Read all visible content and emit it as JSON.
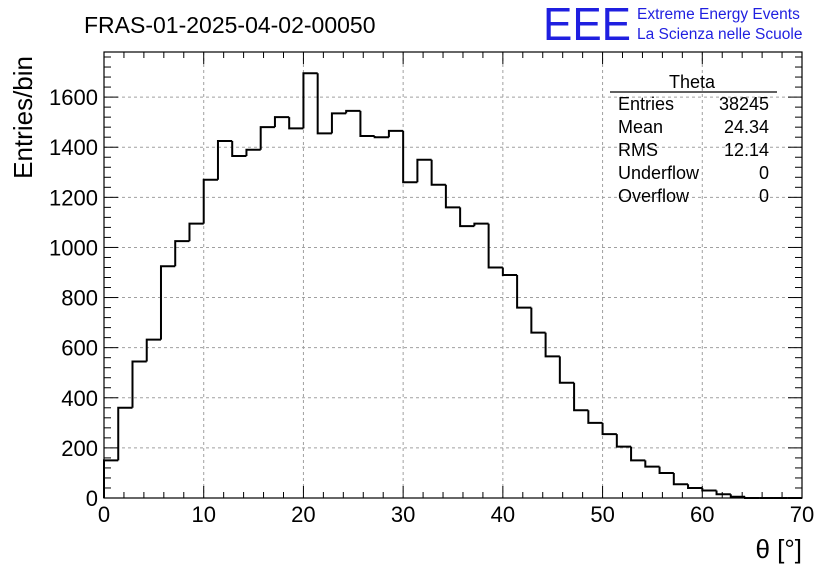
{
  "chart_data": {
    "type": "bar",
    "title": "FRAS-01-2025-04-02-00050",
    "xlabel": "θ [°]",
    "ylabel": "Entries/bin",
    "xlim": [
      0,
      70
    ],
    "ylim": [
      0,
      1780
    ],
    "x_ticks": [
      0,
      10,
      20,
      30,
      40,
      50,
      60,
      70
    ],
    "y_ticks": [
      0,
      200,
      400,
      600,
      800,
      1000,
      1200,
      1400,
      1600
    ],
    "grid": true,
    "bin_width": 1.4286,
    "series": [
      {
        "name": "Theta",
        "values": [
          150,
          360,
          545,
          632,
          925,
          1025,
          1095,
          1270,
          1425,
          1365,
          1390,
          1480,
          1520,
          1475,
          1695,
          1455,
          1535,
          1545,
          1445,
          1440,
          1465,
          1260,
          1350,
          1250,
          1160,
          1085,
          1095,
          920,
          890,
          760,
          660,
          565,
          460,
          350,
          300,
          255,
          205,
          150,
          125,
          100,
          55,
          40,
          30,
          15,
          5,
          0,
          0,
          0,
          0
        ]
      }
    ],
    "stats_box": {
      "title": "Theta",
      "rows": [
        {
          "label": "Entries",
          "value": "38245"
        },
        {
          "label": "Mean",
          "value": "24.34"
        },
        {
          "label": "RMS",
          "value": "12.14"
        },
        {
          "label": "Underflow",
          "value": "0"
        },
        {
          "label": "Overflow",
          "value": "0"
        }
      ]
    }
  },
  "logo": {
    "mark": "EEE",
    "line1": "Extreme Energy Events",
    "line2": "La Scienza nelle Scuole",
    "color": "#1f1fe0"
  }
}
